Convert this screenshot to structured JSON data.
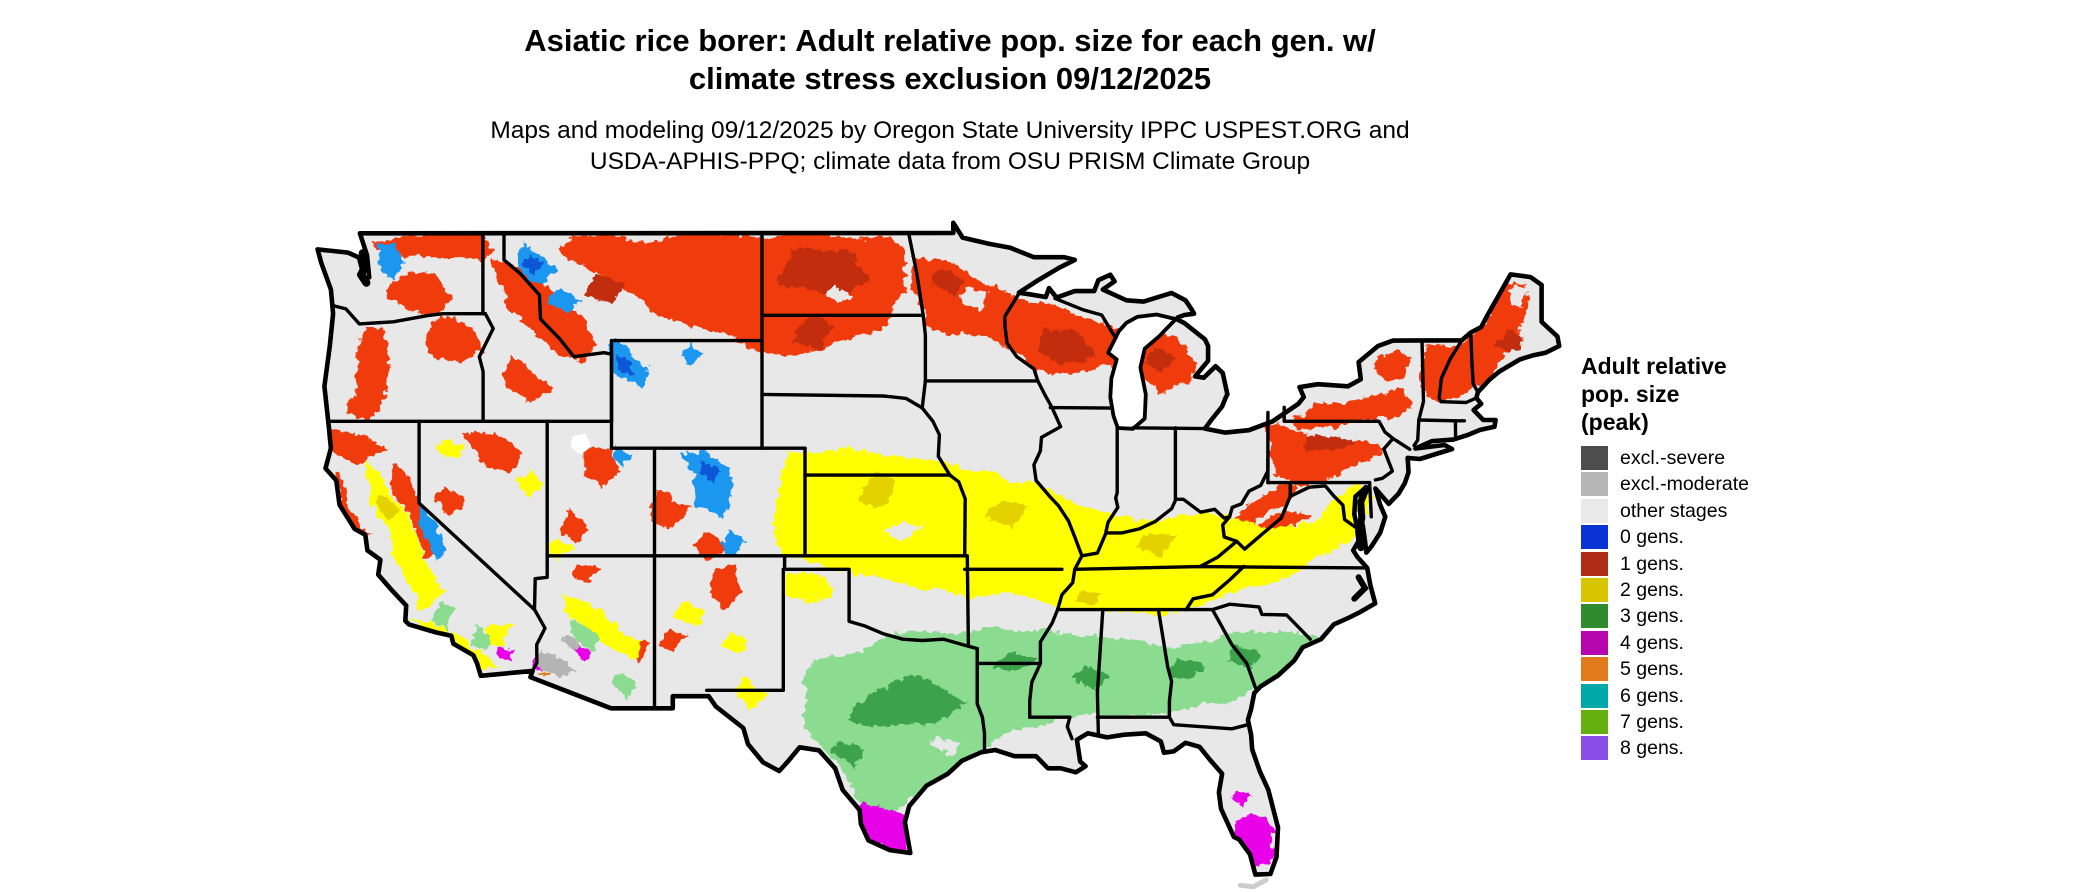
{
  "title": {
    "line1": "Asiatic rice borer: Adult relative pop. size for each gen. w/",
    "line2": "climate stress exclusion 09/12/2025"
  },
  "subtitle": {
    "line1": "Maps and modeling 09/12/2025 by Oregon State University IPPC USPEST.ORG and",
    "line2": "USDA-APHIS-PPQ; climate data from OSU PRISM Climate Group"
  },
  "legend": {
    "title_lines": [
      "Adult relative",
      "pop. size",
      "(peak)"
    ],
    "items": [
      {
        "label": "excl.-severe",
        "color": "#4d4d4d"
      },
      {
        "label": "excl.-moderate",
        "color": "#b5b5b5"
      },
      {
        "label": "other stages",
        "color": "#e9e9e9"
      },
      {
        "label": "0 gens.",
        "color": "#0a33d6"
      },
      {
        "label": "1 gens.",
        "color": "#b02c16"
      },
      {
        "label": "2 gens.",
        "color": "#d9c400"
      },
      {
        "label": "3 gens.",
        "color": "#2e8b2e"
      },
      {
        "label": "4 gens.",
        "color": "#b607ae"
      },
      {
        "label": "5 gens.",
        "color": "#e07a1a"
      },
      {
        "label": "6 gens.",
        "color": "#00a8a8"
      },
      {
        "label": "7 gens.",
        "color": "#64b00e"
      },
      {
        "label": "8 gens.",
        "color": "#8a4ee6"
      }
    ]
  },
  "map": {
    "palette": {
      "base": "#e8e8e8",
      "red": "#f03b0c",
      "redDark": "#c22f0c",
      "blue": "#1e97f0",
      "blueDark": "#0a57d6",
      "yellow": "#ffff00",
      "yellowDark": "#e3d200",
      "green": "#8bdc90",
      "greenDark": "#3da34b",
      "magenta": "#e800e8",
      "orange": "#e07a1a",
      "grayMod": "#b4b4b4",
      "water": "#ffffff",
      "line": "#000000"
    }
  }
}
